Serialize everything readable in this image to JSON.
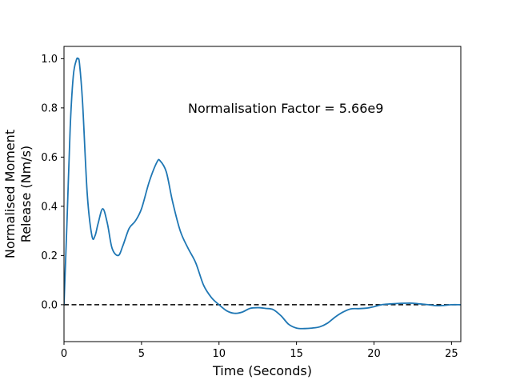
{
  "chart_data": {
    "type": "line",
    "title": "",
    "xlabel": "Time (Seconds)",
    "ylabel_lines": [
      "Normalised Moment",
      "Release (Nm/s)"
    ],
    "xlim": [
      0,
      25.6
    ],
    "ylim": [
      -0.15,
      1.05
    ],
    "x_ticks": [
      0,
      5,
      10,
      15,
      20,
      25
    ],
    "y_ticks": [
      0.0,
      0.2,
      0.4,
      0.6,
      0.8,
      1.0
    ],
    "x_tick_labels": [
      "0",
      "5",
      "10",
      "15",
      "20",
      "25"
    ],
    "y_tick_labels": [
      "0.0",
      "0.2",
      "0.4",
      "0.6",
      "0.8",
      "1.0"
    ],
    "grid": false,
    "annotation": {
      "text": "Normalisation Factor = 5.66e9",
      "x": 8.0,
      "y": 0.8
    },
    "reference_line": {
      "y": 0.0,
      "style": "dashed",
      "color": "#000000"
    },
    "series": [
      {
        "color": "#1f77b4",
        "x": [
          0,
          0.2,
          0.4,
          0.6,
          0.8,
          0.9,
          1.0,
          1.2,
          1.5,
          1.8,
          2.0,
          2.2,
          2.5,
          2.8,
          3.1,
          3.5,
          3.8,
          4.2,
          4.6,
          5.0,
          5.5,
          6.0,
          6.2,
          6.6,
          7.0,
          7.5,
          8.0,
          8.5,
          9.0,
          9.5,
          10.0,
          10.5,
          11.0,
          11.5,
          12.0,
          12.5,
          13.0,
          13.5,
          14.0,
          14.5,
          15.0,
          15.5,
          16.0,
          16.5,
          17.0,
          17.5,
          18.0,
          18.5,
          19.0,
          19.5,
          20.0,
          20.5,
          21.0,
          21.5,
          22.0,
          22.5,
          23.0,
          23.5,
          24.0,
          24.5,
          25.0,
          25.6
        ],
        "y": [
          0.0,
          0.35,
          0.72,
          0.93,
          0.995,
          1.0,
          0.98,
          0.82,
          0.45,
          0.28,
          0.28,
          0.33,
          0.39,
          0.33,
          0.23,
          0.2,
          0.24,
          0.31,
          0.34,
          0.39,
          0.5,
          0.58,
          0.585,
          0.54,
          0.42,
          0.3,
          0.23,
          0.17,
          0.08,
          0.03,
          0.0,
          -0.025,
          -0.035,
          -0.03,
          -0.015,
          -0.012,
          -0.015,
          -0.02,
          -0.045,
          -0.08,
          -0.095,
          -0.097,
          -0.095,
          -0.09,
          -0.075,
          -0.05,
          -0.03,
          -0.017,
          -0.016,
          -0.014,
          -0.008,
          0.0,
          0.003,
          0.005,
          0.006,
          0.006,
          0.003,
          0.0,
          -0.004,
          -0.003,
          0.0,
          0.0
        ]
      }
    ]
  }
}
